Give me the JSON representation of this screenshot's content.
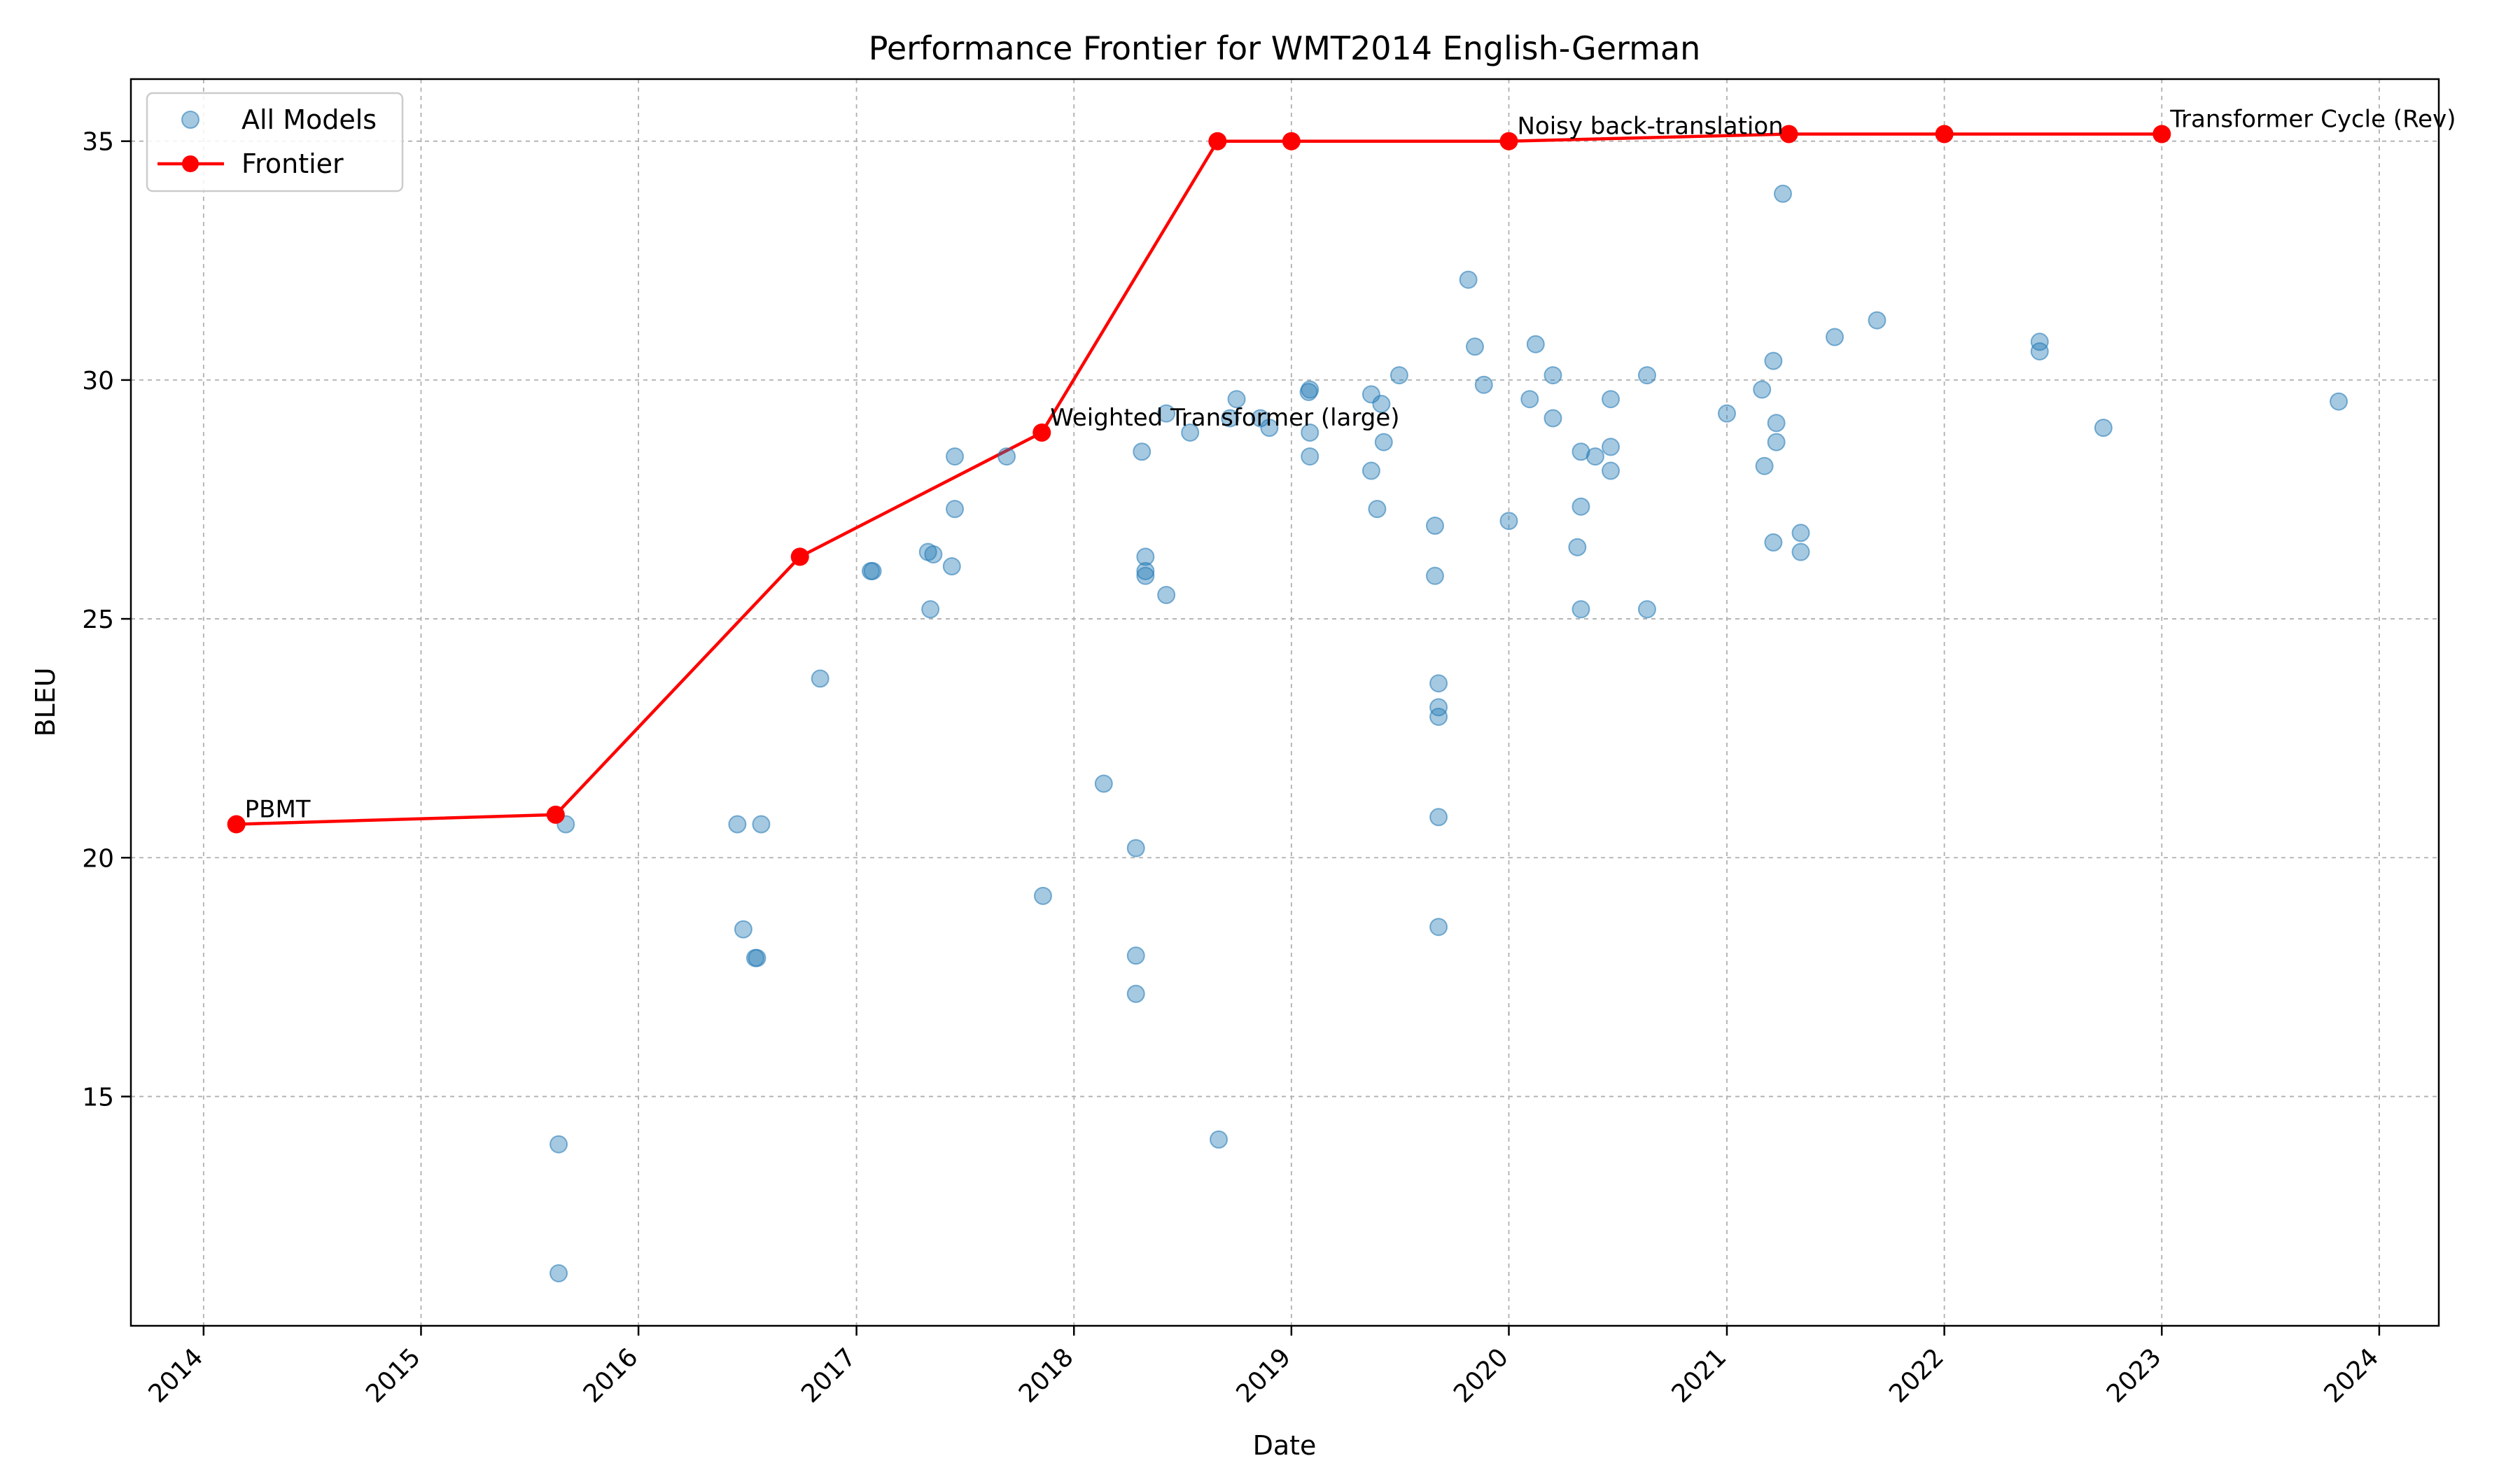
{
  "chart_data": {
    "type": "scatter",
    "title": "Performance Frontier for WMT2014 English-German",
    "xlabel": "Date",
    "ylabel": "BLEU",
    "xlim": [
      "2013-09-01",
      "2024-04-10"
    ],
    "ylim": [
      10.2,
      36.3
    ],
    "x_ticks": [
      "2014",
      "2015",
      "2016",
      "2017",
      "2018",
      "2019",
      "2020",
      "2021",
      "2022",
      "2023",
      "2024"
    ],
    "y_ticks": [
      15,
      20,
      25,
      30,
      35
    ],
    "grid": true,
    "legend_position": "top-left",
    "colors": {
      "all_models": "#1f77b4",
      "frontier": "#ff0000"
    },
    "series": [
      {
        "name": "All Models",
        "style": "scatter",
        "points": [
          [
            "2015-08-20",
            14.0
          ],
          [
            "2015-08-20",
            11.3
          ],
          [
            "2015-09-01",
            20.7
          ],
          [
            "2016-06-15",
            20.7
          ],
          [
            "2016-06-25",
            18.5
          ],
          [
            "2016-07-15",
            17.9
          ],
          [
            "2016-07-18",
            17.9
          ],
          [
            "2016-07-25",
            20.7
          ],
          [
            "2016-11-01",
            23.75
          ],
          [
            "2017-01-25",
            26.0
          ],
          [
            "2017-01-28",
            26.0
          ],
          [
            "2017-05-01",
            26.4
          ],
          [
            "2017-05-05",
            25.2
          ],
          [
            "2017-05-10",
            26.35
          ],
          [
            "2017-06-10",
            26.1
          ],
          [
            "2017-06-15",
            27.3
          ],
          [
            "2017-06-15",
            28.4
          ],
          [
            "2017-09-10",
            28.4
          ],
          [
            "2017-11-10",
            19.2
          ],
          [
            "2018-02-20",
            21.55
          ],
          [
            "2018-04-15",
            20.2
          ],
          [
            "2018-04-15",
            17.95
          ],
          [
            "2018-04-15",
            17.15
          ],
          [
            "2018-04-25",
            28.5
          ],
          [
            "2018-05-01",
            26.3
          ],
          [
            "2018-05-01",
            26.0
          ],
          [
            "2018-05-01",
            25.9
          ],
          [
            "2018-06-05",
            25.5
          ],
          [
            "2018-06-05",
            29.3
          ],
          [
            "2018-07-15",
            28.9
          ],
          [
            "2018-09-01",
            14.1
          ],
          [
            "2018-09-20",
            29.2
          ],
          [
            "2018-10-01",
            29.6
          ],
          [
            "2018-11-10",
            29.2
          ],
          [
            "2018-11-25",
            29.0
          ],
          [
            "2019-01-30",
            29.75
          ],
          [
            "2019-02-01",
            29.8
          ],
          [
            "2019-02-01",
            28.9
          ],
          [
            "2019-02-01",
            28.4
          ],
          [
            "2019-05-15",
            29.7
          ],
          [
            "2019-05-15",
            28.1
          ],
          [
            "2019-05-25",
            27.3
          ],
          [
            "2019-06-01",
            29.5
          ],
          [
            "2019-06-05",
            28.7
          ],
          [
            "2019-07-01",
            30.1
          ],
          [
            "2019-08-30",
            26.95
          ],
          [
            "2019-08-30",
            25.9
          ],
          [
            "2019-09-05",
            23.65
          ],
          [
            "2019-09-05",
            23.15
          ],
          [
            "2019-09-05",
            22.95
          ],
          [
            "2019-09-05",
            20.85
          ],
          [
            "2019-09-05",
            18.55
          ],
          [
            "2019-10-25",
            32.1
          ],
          [
            "2019-11-05",
            30.7
          ],
          [
            "2019-11-20",
            29.9
          ],
          [
            "2020-01-01",
            27.05
          ],
          [
            "2020-02-05",
            29.6
          ],
          [
            "2020-02-15",
            30.75
          ],
          [
            "2020-03-15",
            30.1
          ],
          [
            "2020-03-15",
            29.2
          ],
          [
            "2020-04-25",
            26.5
          ],
          [
            "2020-05-01",
            27.35
          ],
          [
            "2020-05-01",
            28.5
          ],
          [
            "2020-05-01",
            25.2
          ],
          [
            "2020-05-25",
            28.4
          ],
          [
            "2020-06-20",
            29.6
          ],
          [
            "2020-06-20",
            28.6
          ],
          [
            "2020-06-20",
            28.1
          ],
          [
            "2020-08-20",
            30.1
          ],
          [
            "2020-08-20",
            25.2
          ],
          [
            "2021-01-01",
            29.3
          ],
          [
            "2021-03-01",
            29.8
          ],
          [
            "2021-03-05",
            28.2
          ],
          [
            "2021-03-20",
            30.4
          ],
          [
            "2021-03-20",
            26.6
          ],
          [
            "2021-03-25",
            29.1
          ],
          [
            "2021-03-25",
            28.7
          ],
          [
            "2021-04-05",
            33.9
          ],
          [
            "2021-05-05",
            26.8
          ],
          [
            "2021-05-05",
            26.4
          ],
          [
            "2021-07-01",
            30.9
          ],
          [
            "2021-09-10",
            31.25
          ],
          [
            "2022-06-10",
            30.8
          ],
          [
            "2022-06-10",
            30.6
          ],
          [
            "2022-09-25",
            29.0
          ],
          [
            "2023-10-25",
            29.55
          ]
        ]
      },
      {
        "name": "Frontier",
        "style": "line-marker",
        "points": [
          [
            "2014-02-25",
            20.7
          ],
          [
            "2015-08-15",
            20.9
          ],
          [
            "2016-09-28",
            26.3
          ],
          [
            "2017-11-08",
            28.9
          ],
          [
            "2018-08-30",
            35.0
          ],
          [
            "2019-01-01",
            35.0
          ],
          [
            "2020-01-01",
            35.0
          ],
          [
            "2021-04-15",
            35.15
          ],
          [
            "2022-01-01",
            35.15
          ],
          [
            "2023-01-01",
            35.15
          ]
        ]
      }
    ],
    "annotations": [
      {
        "text": "PBMT",
        "x": "2014-02-25",
        "y": 20.7
      },
      {
        "text": "Weighted Transformer (large)",
        "x": "2017-11-08",
        "y": 28.9
      },
      {
        "text": "Noisy back-translation",
        "x": "2020-01-01",
        "y": 35.0
      },
      {
        "text": "Transformer Cycle (Rev)",
        "x": "2023-01-01",
        "y": 35.15
      }
    ]
  }
}
